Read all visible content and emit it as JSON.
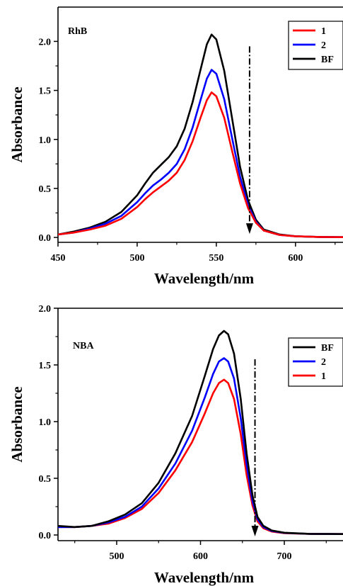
{
  "chart_data": [
    {
      "type": "line",
      "panel_label": "RhB",
      "xlabel": "Wavelength/nm",
      "ylabel": "Absorbance",
      "xlim": [
        450,
        630
      ],
      "ylim": [
        -0.05,
        2.35
      ],
      "xticks": [
        450,
        500,
        550,
        600
      ],
      "yticks": [
        0.0,
        0.5,
        1.0,
        1.5,
        2.0
      ],
      "xtick_labels": [
        "450",
        "500",
        "550",
        "600"
      ],
      "ytick_labels": [
        "0.0",
        "0.5",
        "1.0",
        "1.5",
        "2.0"
      ],
      "legend": [
        "1",
        "2",
        "BF"
      ],
      "legend_position": "top-right",
      "arrow": {
        "x": 571,
        "y_from": 1.95,
        "y_to": 0.05
      },
      "series": [
        {
          "name": "1",
          "color": "#ff0000",
          "points": [
            [
              450,
              0.03
            ],
            [
              460,
              0.05
            ],
            [
              470,
              0.08
            ],
            [
              480,
              0.12
            ],
            [
              490,
              0.19
            ],
            [
              500,
              0.31
            ],
            [
              505,
              0.39
            ],
            [
              510,
              0.46
            ],
            [
              515,
              0.52
            ],
            [
              520,
              0.58
            ],
            [
              525,
              0.66
            ],
            [
              530,
              0.79
            ],
            [
              535,
              0.98
            ],
            [
              540,
              1.22
            ],
            [
              544,
              1.4
            ],
            [
              547,
              1.48
            ],
            [
              550,
              1.44
            ],
            [
              555,
              1.22
            ],
            [
              560,
              0.88
            ],
            [
              565,
              0.55
            ],
            [
              570,
              0.3
            ],
            [
              575,
              0.15
            ],
            [
              580,
              0.07
            ],
            [
              590,
              0.025
            ],
            [
              600,
              0.012
            ],
            [
              615,
              0.005
            ],
            [
              630,
              0.003
            ]
          ]
        },
        {
          "name": "2",
          "color": "#0000ff",
          "points": [
            [
              450,
              0.03
            ],
            [
              460,
              0.05
            ],
            [
              470,
              0.09
            ],
            [
              480,
              0.14
            ],
            [
              490,
              0.22
            ],
            [
              500,
              0.36
            ],
            [
              505,
              0.45
            ],
            [
              510,
              0.53
            ],
            [
              515,
              0.59
            ],
            [
              520,
              0.66
            ],
            [
              525,
              0.75
            ],
            [
              530,
              0.9
            ],
            [
              535,
              1.12
            ],
            [
              540,
              1.4
            ],
            [
              544,
              1.62
            ],
            [
              547,
              1.71
            ],
            [
              550,
              1.67
            ],
            [
              555,
              1.41
            ],
            [
              560,
              1.01
            ],
            [
              565,
              0.62
            ],
            [
              570,
              0.33
            ],
            [
              575,
              0.16
            ],
            [
              580,
              0.07
            ],
            [
              590,
              0.025
            ],
            [
              600,
              0.012
            ],
            [
              615,
              0.005
            ],
            [
              630,
              0.003
            ]
          ]
        },
        {
          "name": "BF",
          "color": "#000000",
          "points": [
            [
              450,
              0.03
            ],
            [
              460,
              0.06
            ],
            [
              470,
              0.1
            ],
            [
              480,
              0.16
            ],
            [
              490,
              0.26
            ],
            [
              500,
              0.43
            ],
            [
              505,
              0.55
            ],
            [
              510,
              0.66
            ],
            [
              515,
              0.74
            ],
            [
              520,
              0.82
            ],
            [
              525,
              0.93
            ],
            [
              530,
              1.11
            ],
            [
              535,
              1.38
            ],
            [
              540,
              1.71
            ],
            [
              544,
              1.97
            ],
            [
              547,
              2.07
            ],
            [
              550,
              2.02
            ],
            [
              555,
              1.7
            ],
            [
              560,
              1.21
            ],
            [
              565,
              0.72
            ],
            [
              570,
              0.38
            ],
            [
              575,
              0.18
            ],
            [
              580,
              0.08
            ],
            [
              590,
              0.03
            ],
            [
              600,
              0.012
            ],
            [
              615,
              0.005
            ],
            [
              630,
              0.003
            ]
          ]
        }
      ]
    },
    {
      "type": "line",
      "panel_label": "NBA",
      "xlabel": "Wavelength/nm",
      "ylabel": "Absorbance",
      "xlim": [
        430,
        770
      ],
      "ylim": [
        -0.05,
        2.0
      ],
      "xticks": [
        500,
        600,
        700
      ],
      "yticks": [
        0.0,
        0.5,
        1.0,
        1.5,
        2.0
      ],
      "xtick_labels": [
        "500",
        "600",
        "700"
      ],
      "ytick_labels": [
        "0.0",
        "0.5",
        "1.0",
        "1.5",
        "2.0"
      ],
      "legend": [
        "BF",
        "2",
        "1"
      ],
      "legend_position": "top-right",
      "arrow": {
        "x": 665,
        "y_from": 1.55,
        "y_to": 0.0
      },
      "series": [
        {
          "name": "BF",
          "color": "#000000",
          "points": [
            [
              430,
              0.08
            ],
            [
              450,
              0.07
            ],
            [
              470,
              0.08
            ],
            [
              490,
              0.12
            ],
            [
              510,
              0.18
            ],
            [
              530,
              0.28
            ],
            [
              550,
              0.46
            ],
            [
              570,
              0.72
            ],
            [
              590,
              1.05
            ],
            [
              605,
              1.4
            ],
            [
              615,
              1.64
            ],
            [
              622,
              1.76
            ],
            [
              628,
              1.8
            ],
            [
              633,
              1.77
            ],
            [
              640,
              1.6
            ],
            [
              648,
              1.2
            ],
            [
              655,
              0.72
            ],
            [
              662,
              0.35
            ],
            [
              668,
              0.16
            ],
            [
              675,
              0.08
            ],
            [
              685,
              0.04
            ],
            [
              700,
              0.02
            ],
            [
              730,
              0.01
            ],
            [
              770,
              0.008
            ]
          ]
        },
        {
          "name": "2",
          "color": "#0000ff",
          "points": [
            [
              430,
              0.07
            ],
            [
              450,
              0.07
            ],
            [
              470,
              0.08
            ],
            [
              490,
              0.11
            ],
            [
              510,
              0.16
            ],
            [
              530,
              0.25
            ],
            [
              550,
              0.41
            ],
            [
              570,
              0.63
            ],
            [
              590,
              0.92
            ],
            [
              605,
              1.21
            ],
            [
              615,
              1.42
            ],
            [
              622,
              1.53
            ],
            [
              628,
              1.56
            ],
            [
              633,
              1.53
            ],
            [
              640,
              1.38
            ],
            [
              648,
              1.03
            ],
            [
              655,
              0.62
            ],
            [
              662,
              0.3
            ],
            [
              668,
              0.14
            ],
            [
              675,
              0.07
            ],
            [
              685,
              0.035
            ],
            [
              700,
              0.018
            ],
            [
              730,
              0.01
            ],
            [
              770,
              0.008
            ]
          ]
        },
        {
          "name": "1",
          "color": "#ff0000",
          "points": [
            [
              430,
              0.07
            ],
            [
              450,
              0.07
            ],
            [
              470,
              0.08
            ],
            [
              490,
              0.1
            ],
            [
              510,
              0.15
            ],
            [
              530,
              0.23
            ],
            [
              550,
              0.37
            ],
            [
              570,
              0.57
            ],
            [
              590,
              0.82
            ],
            [
              605,
              1.07
            ],
            [
              615,
              1.25
            ],
            [
              622,
              1.34
            ],
            [
              628,
              1.37
            ],
            [
              633,
              1.34
            ],
            [
              640,
              1.2
            ],
            [
              648,
              0.89
            ],
            [
              655,
              0.53
            ],
            [
              662,
              0.26
            ],
            [
              668,
              0.12
            ],
            [
              675,
              0.06
            ],
            [
              685,
              0.03
            ],
            [
              700,
              0.016
            ],
            [
              730,
              0.01
            ],
            [
              770,
              0.008
            ]
          ]
        }
      ]
    }
  ]
}
